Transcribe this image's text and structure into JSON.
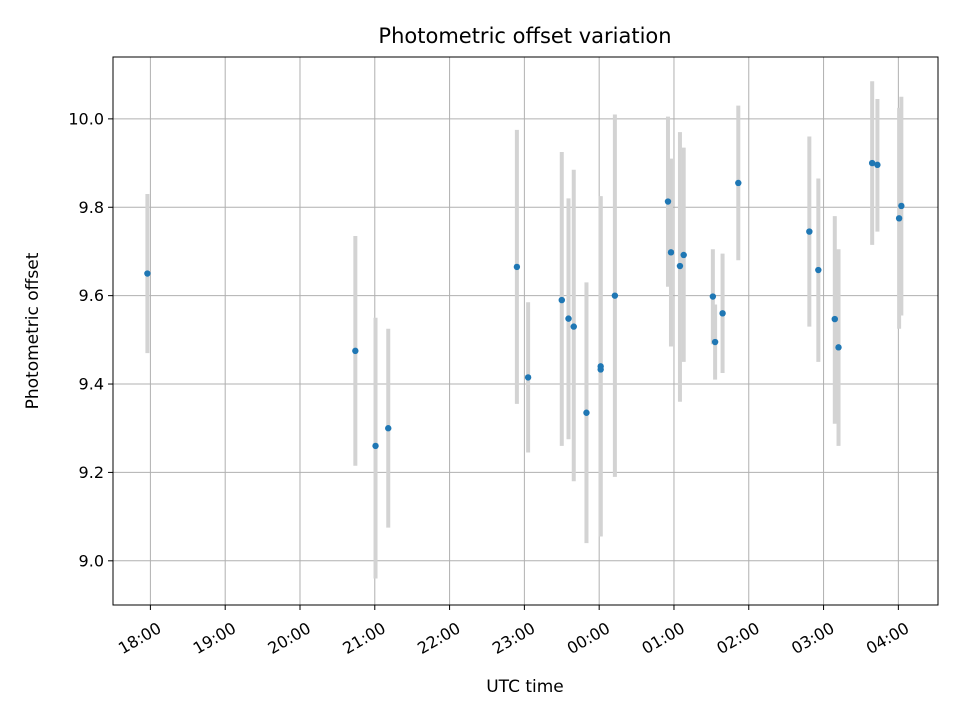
{
  "chart_data": {
    "type": "scatter",
    "title": "Photometric offset variation",
    "xlabel": "UTC time",
    "ylabel": "Photometric offset",
    "x_ticks": [
      {
        "t": 0,
        "label": "18:00"
      },
      {
        "t": 1,
        "label": "19:00"
      },
      {
        "t": 2,
        "label": "20:00"
      },
      {
        "t": 3,
        "label": "21:00"
      },
      {
        "t": 4,
        "label": "22:00"
      },
      {
        "t": 5,
        "label": "23:00"
      },
      {
        "t": 6,
        "label": "00:00"
      },
      {
        "t": 7,
        "label": "01:00"
      },
      {
        "t": 8,
        "label": "02:00"
      },
      {
        "t": 9,
        "label": "03:00"
      },
      {
        "t": 10,
        "label": "04:00"
      }
    ],
    "y_ticks": [
      {
        "v": 9.0,
        "label": "9.0"
      },
      {
        "v": 9.2,
        "label": "9.2"
      },
      {
        "v": 9.4,
        "label": "9.4"
      },
      {
        "v": 9.6,
        "label": "9.6"
      },
      {
        "v": 9.8,
        "label": "9.8"
      },
      {
        "v": 10.0,
        "label": "10.0"
      }
    ],
    "xlim": [
      -0.5,
      10.53
    ],
    "ylim": [
      8.9,
      10.14
    ],
    "grid": true,
    "marker_color": "#1f77b4",
    "errorbar_color": "#d3d3d3",
    "points": [
      {
        "t": -0.04,
        "y": 9.65,
        "lo": 9.47,
        "hi": 9.83
      },
      {
        "t": 2.74,
        "y": 9.475,
        "lo": 9.215,
        "hi": 9.735
      },
      {
        "t": 3.01,
        "y": 9.26,
        "lo": 8.96,
        "hi": 9.55
      },
      {
        "t": 3.18,
        "y": 9.3,
        "lo": 9.075,
        "hi": 9.525
      },
      {
        "t": 4.9,
        "y": 9.665,
        "lo": 9.355,
        "hi": 9.975
      },
      {
        "t": 5.05,
        "y": 9.415,
        "lo": 9.245,
        "hi": 9.585
      },
      {
        "t": 5.5,
        "y": 9.59,
        "lo": 9.26,
        "hi": 9.925
      },
      {
        "t": 5.59,
        "y": 9.548,
        "lo": 9.275,
        "hi": 9.82
      },
      {
        "t": 5.66,
        "y": 9.53,
        "lo": 9.18,
        "hi": 9.885
      },
      {
        "t": 5.83,
        "y": 9.335,
        "lo": 9.04,
        "hi": 9.63
      },
      {
        "t": 6.02,
        "y": 9.44,
        "lo": 9.055,
        "hi": 9.825
      },
      {
        "t": 6.02,
        "y": 9.433,
        "lo": 9.055,
        "hi": 9.825
      },
      {
        "t": 6.21,
        "y": 9.6,
        "lo": 9.19,
        "hi": 10.01
      },
      {
        "t": 6.92,
        "y": 9.813,
        "lo": 9.62,
        "hi": 10.005
      },
      {
        "t": 6.96,
        "y": 9.698,
        "lo": 9.485,
        "hi": 9.91
      },
      {
        "t": 7.08,
        "y": 9.667,
        "lo": 9.36,
        "hi": 9.97
      },
      {
        "t": 7.13,
        "y": 9.692,
        "lo": 9.45,
        "hi": 9.935
      },
      {
        "t": 7.52,
        "y": 9.598,
        "lo": 9.49,
        "hi": 9.705
      },
      {
        "t": 7.55,
        "y": 9.495,
        "lo": 9.41,
        "hi": 9.58
      },
      {
        "t": 7.65,
        "y": 9.56,
        "lo": 9.425,
        "hi": 9.695
      },
      {
        "t": 7.86,
        "y": 9.855,
        "lo": 9.68,
        "hi": 10.03
      },
      {
        "t": 8.81,
        "y": 9.745,
        "lo": 9.53,
        "hi": 9.96
      },
      {
        "t": 8.93,
        "y": 9.658,
        "lo": 9.45,
        "hi": 9.865
      },
      {
        "t": 9.15,
        "y": 9.547,
        "lo": 9.31,
        "hi": 9.78
      },
      {
        "t": 9.2,
        "y": 9.483,
        "lo": 9.26,
        "hi": 9.705
      },
      {
        "t": 9.65,
        "y": 9.9,
        "lo": 9.715,
        "hi": 10.085
      },
      {
        "t": 9.72,
        "y": 9.896,
        "lo": 9.745,
        "hi": 10.045
      },
      {
        "t": 10.01,
        "y": 9.775,
        "lo": 9.525,
        "hi": 10.025
      },
      {
        "t": 10.04,
        "y": 9.803,
        "lo": 9.555,
        "hi": 10.05
      }
    ]
  }
}
